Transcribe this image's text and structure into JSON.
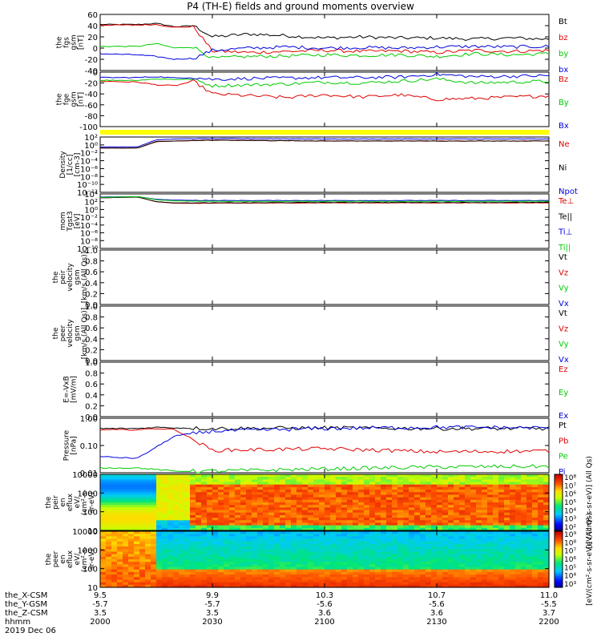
{
  "title": "P4 (TH-E) fields and ground moments overview",
  "footer": {
    "row_labels": [
      "the_X-CSM",
      "the_Y-GSM",
      "the_Z-CSM",
      "hhmm",
      "2019 Dec 06"
    ],
    "ticks": [
      {
        "x": "9.5",
        "y": "-5.7",
        "z": "3.5",
        "hhmm": "2000"
      },
      {
        "x": "9.9",
        "y": "-5.7",
        "z": "3.5",
        "hhmm": "2030"
      },
      {
        "x": "10.3",
        "y": "-5.6",
        "z": "3.6",
        "hhmm": "2100"
      },
      {
        "x": "10.7",
        "y": "-5.6",
        "z": "3.6",
        "hhmm": "2130"
      },
      {
        "x": "11.0",
        "y": "-5.5",
        "z": "3.7",
        "hhmm": "2200"
      }
    ]
  },
  "colors": {
    "black": "#000000",
    "red": "#e00000",
    "green": "#00cc00",
    "blue": "#0000dd",
    "yellow": "#ffff00"
  },
  "chart_data": [
    {
      "type": "line",
      "id": "fgs",
      "ylabel_lines": [
        "the",
        "fgs",
        "gsm",
        "[nT]"
      ],
      "ylim": [
        -40,
        60
      ],
      "yticks": [
        "60",
        "40",
        "20",
        "0",
        "-20",
        "-40"
      ],
      "legend": [
        {
          "name": "Bt",
          "color": "#000000"
        },
        {
          "name": "bz",
          "color": "#e00000"
        },
        {
          "name": "by",
          "color": "#00cc00"
        },
        {
          "name": "bx",
          "color": "#0000dd"
        }
      ],
      "series": [
        {
          "name": "Bt",
          "color": "#000000",
          "hhmm": [
            "2000",
            "2010",
            "2015",
            "2020",
            "2025",
            "2030",
            "2040",
            "2050",
            "2100",
            "2110",
            "2120",
            "2130",
            "2140",
            "2150",
            "2200"
          ],
          "values": [
            42,
            42,
            44,
            38,
            40,
            20,
            25,
            22,
            18,
            20,
            18,
            18,
            16,
            18,
            16
          ]
        },
        {
          "name": "bz",
          "color": "#e00000",
          "hhmm": [
            "2000",
            "2010",
            "2015",
            "2020",
            "2025",
            "2030",
            "2040",
            "2050",
            "2100",
            "2110",
            "2120",
            "2130",
            "2140",
            "2150",
            "2200"
          ],
          "values": [
            41,
            41,
            42,
            37,
            38,
            -5,
            -8,
            -6,
            -4,
            -6,
            -5,
            -8,
            -4,
            -6,
            -4
          ]
        },
        {
          "name": "by",
          "color": "#00cc00",
          "hhmm": [
            "2000",
            "2010",
            "2015",
            "2020",
            "2025",
            "2030",
            "2040",
            "2050",
            "2100",
            "2110",
            "2120",
            "2130",
            "2140",
            "2150",
            "2200"
          ],
          "values": [
            3,
            3,
            8,
            0,
            2,
            -18,
            -15,
            -14,
            -12,
            -13,
            -12,
            -15,
            -10,
            -12,
            -10
          ]
        },
        {
          "name": "bx",
          "color": "#0000dd",
          "hhmm": [
            "2000",
            "2010",
            "2015",
            "2020",
            "2025",
            "2030",
            "2040",
            "2050",
            "2100",
            "2110",
            "2120",
            "2130",
            "2140",
            "2150",
            "2200"
          ],
          "values": [
            -10,
            -12,
            -15,
            -20,
            -18,
            -4,
            0,
            2,
            0,
            1,
            0,
            2,
            3,
            2,
            3
          ]
        }
      ]
    },
    {
      "type": "line",
      "id": "fgs2",
      "ylabel_lines": [
        "the",
        "fge",
        "gsm",
        "[nT]"
      ],
      "ylim": [
        -110,
        10
      ],
      "yticks": [
        "0",
        "-20",
        "-40",
        "-60",
        "-80",
        "-100"
      ],
      "legend": [
        {
          "name": "Bz",
          "color": "#e00000"
        },
        {
          "name": "By",
          "color": "#00cc00"
        },
        {
          "name": "Bx",
          "color": "#0000dd"
        }
      ],
      "series": [
        {
          "name": "Bz",
          "color": "#e00000",
          "hhmm": [
            "2000",
            "2010",
            "2015",
            "2020",
            "2025",
            "2030",
            "2040",
            "2050",
            "2100",
            "2110",
            "2120",
            "2130",
            "2140",
            "2150",
            "2200"
          ],
          "values": [
            -10,
            -12,
            -18,
            -20,
            -10,
            -38,
            -42,
            -46,
            -40,
            -45,
            -40,
            -50,
            -48,
            -45,
            -42
          ]
        },
        {
          "name": "By",
          "color": "#00cc00",
          "hhmm": [
            "2000",
            "2010",
            "2015",
            "2020",
            "2025",
            "2030",
            "2040",
            "2050",
            "2100",
            "2110",
            "2120",
            "2130",
            "2140",
            "2150",
            "2200"
          ],
          "values": [
            -8,
            -8,
            -5,
            -6,
            -6,
            -20,
            -18,
            -16,
            -12,
            -14,
            -10,
            -5,
            -14,
            -12,
            -10
          ]
        },
        {
          "name": "Bx",
          "color": "#0000dd",
          "hhmm": [
            "2000",
            "2010",
            "2015",
            "2020",
            "2025",
            "2030",
            "2040",
            "2050",
            "2100",
            "2110",
            "2120",
            "2130",
            "2140",
            "2150",
            "2200"
          ],
          "values": [
            -2,
            -2,
            0,
            -3,
            -2,
            -6,
            -4,
            -3,
            -2,
            -2,
            -1,
            5,
            0,
            1,
            2
          ]
        }
      ]
    },
    {
      "type": "line",
      "id": "density",
      "log": true,
      "ylabel_lines": [
        "Density",
        "[1/cc]",
        "[cm-3]"
      ],
      "ylim": [
        -12,
        2
      ],
      "yticks": [
        "10²",
        "10⁰",
        "10⁻²",
        "10⁻⁴",
        "10⁻⁶",
        "10⁻⁸",
        "10⁻¹⁰",
        "10⁻¹²"
      ],
      "legend": [
        {
          "name": "Ne",
          "color": "#e00000"
        },
        {
          "name": "Ni",
          "color": "#000000"
        },
        {
          "name": "Npot",
          "color": "#0000dd"
        }
      ],
      "series": [
        {
          "name": "Ne",
          "color": "#e00000",
          "hhmm": [
            "2000",
            "2010",
            "2015",
            "2020",
            "2030",
            "2100",
            "2200"
          ],
          "values": [
            -0.8,
            -0.8,
            0.8,
            1.0,
            1.2,
            1.0,
            1.0
          ]
        },
        {
          "name": "Ni",
          "color": "#000000",
          "hhmm": [
            "2000",
            "2010",
            "2015",
            "2020",
            "2030",
            "2100",
            "2200"
          ],
          "values": [
            -0.8,
            -0.8,
            0.9,
            1.0,
            1.2,
            1.0,
            1.0
          ]
        },
        {
          "name": "Npot",
          "color": "#0000dd",
          "hhmm": [
            "2000",
            "2010",
            "2015",
            "2020",
            "2030",
            "2100",
            "2200"
          ],
          "values": [
            -0.5,
            -0.5,
            1.3,
            1.5,
            1.6,
            1.5,
            1.5
          ]
        }
      ]
    },
    {
      "type": "line",
      "id": "temp",
      "log": true,
      "ylabel_lines": [
        "mom",
        "Tgst3",
        "[eV]"
      ],
      "ylim": [
        -10,
        4
      ],
      "yticks": [
        "10⁴",
        "10²",
        "10⁰",
        "10⁻²",
        "10⁻⁴",
        "10⁻⁶",
        "10⁻⁸",
        "10⁻¹⁰"
      ],
      "legend": [
        {
          "name": "Te⊥",
          "color": "#e00000"
        },
        {
          "name": "Te||",
          "color": "#000000"
        },
        {
          "name": "Ti⊥",
          "color": "#0000dd"
        },
        {
          "name": "Ti||",
          "color": "#00cc00"
        }
      ],
      "series": [
        {
          "name": "Te⊥",
          "color": "#e00000",
          "hhmm": [
            "2000",
            "2010",
            "2015",
            "2020",
            "2030",
            "2100",
            "2200"
          ],
          "values": [
            3.0,
            3.2,
            2.0,
            1.6,
            1.6,
            1.7,
            1.7
          ]
        },
        {
          "name": "Te||",
          "color": "#000000",
          "hhmm": [
            "2000",
            "2010",
            "2015",
            "2020",
            "2030",
            "2100",
            "2200"
          ],
          "values": [
            3.0,
            3.2,
            2.0,
            1.7,
            1.7,
            1.8,
            1.8
          ]
        },
        {
          "name": "Ti⊥",
          "color": "#0000dd",
          "hhmm": [
            "2000",
            "2010",
            "2015",
            "2020",
            "2030",
            "2100",
            "2200"
          ],
          "values": [
            3.2,
            3.3,
            2.6,
            2.4,
            2.3,
            2.3,
            2.3
          ]
        },
        {
          "name": "Ti||",
          "color": "#00cc00",
          "hhmm": [
            "2000",
            "2010",
            "2015",
            "2020",
            "2030",
            "2100",
            "2200"
          ],
          "values": [
            3.1,
            3.3,
            2.5,
            2.2,
            2.1,
            2.1,
            2.1
          ]
        }
      ]
    },
    {
      "type": "line",
      "id": "peir_vel",
      "ylabel_lines": [
        "the",
        "peir",
        "velocity",
        "gsm",
        "[km/s (All Qs)]"
      ],
      "ylim": [
        0,
        1
      ],
      "yticks": [
        "1.0",
        "0.8",
        "0.6",
        "0.4",
        "0.2",
        "0.0"
      ],
      "legend": [
        {
          "name": "Vt",
          "color": "#000000"
        },
        {
          "name": "Vz",
          "color": "#e00000"
        },
        {
          "name": "Vy",
          "color": "#00cc00"
        },
        {
          "name": "Vx",
          "color": "#0000dd"
        }
      ],
      "series": []
    },
    {
      "type": "line",
      "id": "peer_vel",
      "ylabel_lines": [
        "the",
        "peer",
        "velocity",
        "gsm",
        "[km/s (All Qs)]"
      ],
      "ylim": [
        0,
        1
      ],
      "yticks": [
        "1.0",
        "0.8",
        "0.6",
        "0.4",
        "0.2",
        "0.0"
      ],
      "legend": [
        {
          "name": "Vt",
          "color": "#000000"
        },
        {
          "name": "Vz",
          "color": "#e00000"
        },
        {
          "name": "Vy",
          "color": "#00cc00"
        },
        {
          "name": "Vx",
          "color": "#0000dd"
        }
      ],
      "series": []
    },
    {
      "type": "line",
      "id": "efield",
      "ylabel_lines": [
        "E=-VxB",
        "[mV/m]"
      ],
      "ylim": [
        0,
        1
      ],
      "yticks": [
        "1.0",
        "0.8",
        "0.6",
        "0.4",
        "0.2",
        "0.0"
      ],
      "legend": [
        {
          "name": "Ez",
          "color": "#e00000"
        },
        {
          "name": "Ey",
          "color": "#00cc00"
        },
        {
          "name": "Ex",
          "color": "#0000dd"
        }
      ],
      "series": []
    },
    {
      "type": "line",
      "id": "pressure",
      "log": true,
      "ylabel_lines": [
        "Pressure",
        "[nPa]"
      ],
      "ylim": [
        -1.5,
        0.2
      ],
      "yticks": [
        "1.00",
        "0.10",
        "0.01"
      ],
      "legend": [
        {
          "name": "Pt",
          "color": "#000000"
        },
        {
          "name": "Pb",
          "color": "#e00000"
        },
        {
          "name": "Pe",
          "color": "#00cc00"
        },
        {
          "name": "Pi",
          "color": "#0000dd"
        }
      ],
      "series": [
        {
          "name": "Pt",
          "color": "#000000",
          "hhmm": [
            "2000",
            "2010",
            "2015",
            "2020",
            "2030",
            "2100",
            "2130",
            "2200"
          ],
          "values": [
            -0.12,
            -0.12,
            -0.08,
            -0.1,
            -0.12,
            -0.1,
            -0.12,
            -0.12
          ]
        },
        {
          "name": "Pb",
          "color": "#e00000",
          "hhmm": [
            "2000",
            "2010",
            "2015",
            "2020",
            "2030",
            "2100",
            "2130",
            "2200"
          ],
          "values": [
            -0.16,
            -0.16,
            -0.12,
            -0.15,
            -0.8,
            -0.75,
            -0.85,
            -0.82
          ]
        },
        {
          "name": "Pe",
          "color": "#00cc00",
          "hhmm": [
            "2000",
            "2010",
            "2015",
            "2020",
            "2030",
            "2100",
            "2130",
            "2200"
          ],
          "values": [
            -1.35,
            -1.35,
            -1.4,
            -1.45,
            -1.45,
            -1.38,
            -1.32,
            -1.3
          ]
        },
        {
          "name": "Pi",
          "color": "#0000dd",
          "hhmm": [
            "2000",
            "2010",
            "2015",
            "2020",
            "2030",
            "2100",
            "2130",
            "2200"
          ],
          "values": [
            -1.0,
            -1.05,
            -0.7,
            -0.35,
            -0.2,
            -0.12,
            -0.08,
            -0.1
          ]
        }
      ]
    },
    {
      "type": "heatmap",
      "id": "peir_eflux",
      "ylabel_lines": [
        "the",
        "peir",
        "en",
        "eflux",
        "eV/",
        "(cm²-s-",
        "sr-eV)"
      ],
      "log": true,
      "ylim": [
        1,
        4.3
      ],
      "yticks": [
        "10000",
        "1000",
        "100",
        "10"
      ],
      "colorbar_ticks": [
        "10⁸",
        "10⁷",
        "10⁶",
        "10⁵",
        "10⁴",
        "10³",
        "10²"
      ],
      "colorbar_label": "[eV/(cm²-s-sr-eV)] (All Qs)"
    },
    {
      "type": "heatmap",
      "id": "peer_eflux",
      "ylabel_lines": [
        "the",
        "peer",
        "en",
        "eflux",
        "eV/",
        "(cm²-s-",
        "sr-eV)"
      ],
      "log": true,
      "ylim": [
        1,
        4.3
      ],
      "yticks": [
        "10000",
        "1000",
        "100",
        "10"
      ],
      "colorbar_ticks": [
        "10⁹",
        "10⁸",
        "10⁷",
        "10⁶",
        "10⁵",
        "10⁴",
        "10³"
      ],
      "colorbar_label": "[eV/(cm²-s-sr-eV)] (All Qs)"
    }
  ]
}
